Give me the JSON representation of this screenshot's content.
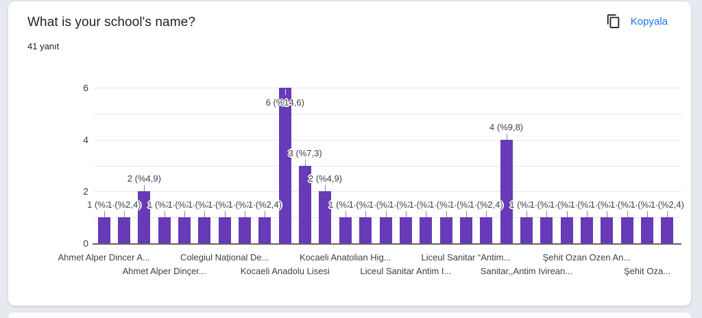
{
  "card": {
    "title": "What is your school's name?",
    "subtitle": "41 yanıt",
    "copy_button_label": "Kopyala"
  },
  "colors": {
    "bar": "#673ab7",
    "link": "#1a73e8",
    "axis": "#5f6368",
    "grid": "#e6e6e6",
    "text": "#3c4043"
  },
  "chart_data": {
    "type": "bar",
    "title": "What is your school's name?",
    "response_count_text": "41 yanıt",
    "total_responses": 41,
    "ylim": [
      0,
      6
    ],
    "y_ticks": [
      0,
      2,
      4,
      6
    ],
    "grid_values": [
      1,
      2,
      3,
      4,
      5,
      6
    ],
    "grid": true,
    "legend_position": "none",
    "bar_color": "#673ab7",
    "values": [
      1,
      1,
      2,
      1,
      1,
      1,
      1,
      1,
      1,
      6,
      3,
      2,
      1,
      1,
      1,
      1,
      1,
      1,
      1,
      1,
      4,
      1,
      1,
      1,
      1,
      1,
      1,
      1,
      1
    ],
    "value_labels": [
      "1 (%2,4)",
      "1 (%2,4)",
      "2 (%4,9)",
      "1 (%2,4)",
      "1 (%2,4)",
      "1 (%2,4)",
      "1 (%2,4)",
      "1 (%2,4)",
      "1 (%2,4)",
      "6 (%14,6)",
      "3 (%7,3)",
      "2 (%4,9)",
      "1 (%2,4)",
      "1 (%2,4)",
      "1 (%2,4)",
      "1 (%2,4)",
      "1 (%2,4)",
      "1 (%2,4)",
      "1 (%2,4)",
      "1 (%2,4)",
      "4 (%9,8)",
      "1 (%2,4)",
      "1 (%2,4)",
      "1 (%2,4)",
      "1 (%2,4)",
      "1 (%2,4)",
      "1 (%2,4)",
      "1 (%2,4)",
      "1 (%2,4)"
    ],
    "x_tick_labels": [
      {
        "bar": 0,
        "row": 0,
        "text": "Ahmet Alper Dincer A..."
      },
      {
        "bar": 3,
        "row": 1,
        "text": "Ahmet Alper Dinçer..."
      },
      {
        "bar": 6,
        "row": 0,
        "text": "Colegiul Național De..."
      },
      {
        "bar": 9,
        "row": 1,
        "text": "Kocaeli Anadolu Lisesi"
      },
      {
        "bar": 12,
        "row": 0,
        "text": "Kocaeli Anatolian Hig..."
      },
      {
        "bar": 15,
        "row": 1,
        "text": "Liceul Sanitar Antim I..."
      },
      {
        "bar": 18,
        "row": 0,
        "text": "Liceul Sanitar “Antim..."
      },
      {
        "bar": 21,
        "row": 1,
        "text": "Sanitar,,Antim Ivirean..."
      },
      {
        "bar": 24,
        "row": 0,
        "text": "Şehit Ozan Ozen An..."
      },
      {
        "bar": 27,
        "row": 1,
        "text": "Şehit Oza..."
      }
    ]
  }
}
